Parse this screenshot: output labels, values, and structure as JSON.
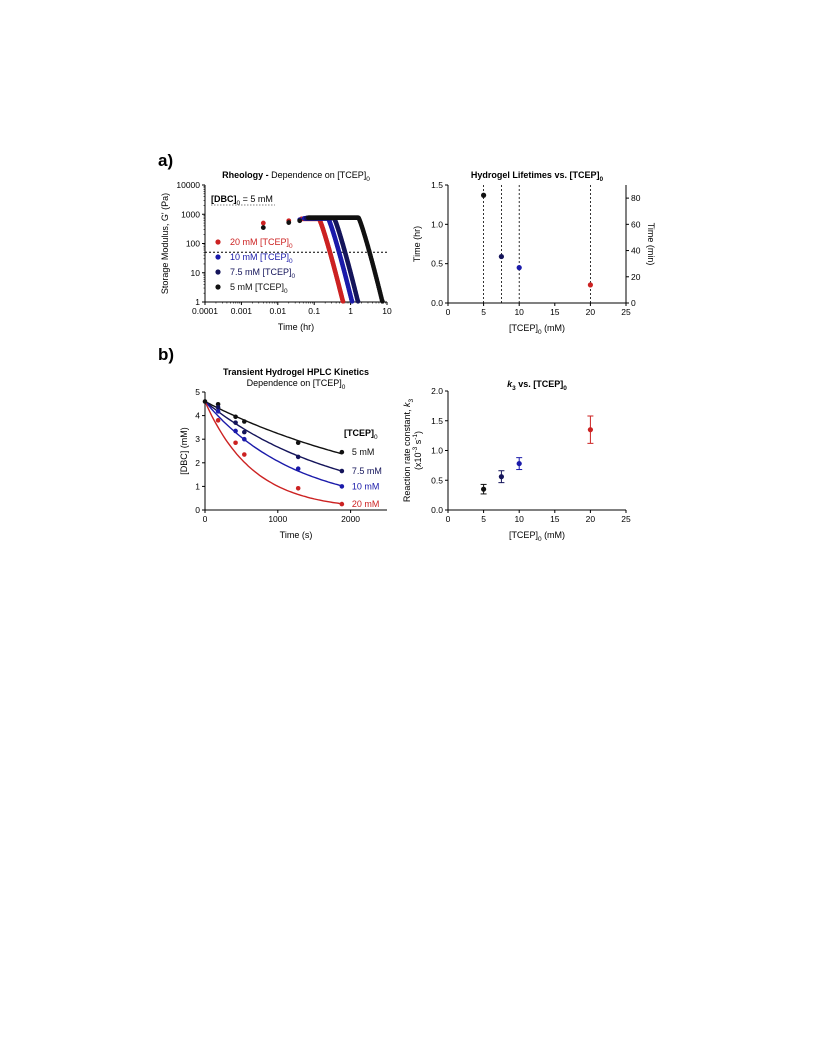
{
  "panel_labels": {
    "a": "a)",
    "b": "b)"
  },
  "colors": {
    "red": "#cc2222",
    "blue": "#1a1aaa",
    "navy": "#14145a",
    "black": "#111111"
  },
  "chart_data": [
    {
      "id": "rheology",
      "type": "scatter",
      "title_bold": "Rheology -",
      "title_rest": " Dependence on [TCEP]",
      "title_sub": "0",
      "xlabel": "Time (hr)",
      "ylabel": "Storage Modulus, G' (Pa)",
      "xscale": "log",
      "yscale": "log",
      "xlim": [
        0.0001,
        10
      ],
      "ylim": [
        1,
        10000
      ],
      "x_ticks": [
        "0.0001",
        "0.001",
        "0.01",
        "0.1",
        "1",
        "10"
      ],
      "y_ticks": [
        "1",
        "10",
        "100",
        "1000",
        "10000"
      ],
      "reference_line_y": 50,
      "annotation": {
        "main": "[DBC]",
        "sub": "0",
        "rest": " = 5 mM"
      },
      "series": [
        {
          "name": "20 mM [TCEP]",
          "sub": "0",
          "color": "#cc2222",
          "plateau": 700,
          "t_end": 0.62
        },
        {
          "name": "10 mM [TCEP]",
          "sub": "0",
          "color": "#1a1aaa",
          "plateau": 720,
          "t_end": 1.1
        },
        {
          "name": "7.5 mM [TCEP]",
          "sub": "0",
          "color": "#14145a",
          "plateau": 740,
          "t_end": 1.6
        },
        {
          "name": "5 mM [TCEP]",
          "sub": "0",
          "color": "#111111",
          "plateau": 760,
          "t_end": 7.5
        }
      ],
      "early_points": [
        {
          "x": 0.004,
          "y": 500,
          "color": "#cc2222"
        },
        {
          "x": 0.004,
          "y": 350,
          "color": "#111111"
        },
        {
          "x": 0.02,
          "y": 600,
          "color": "#cc2222"
        },
        {
          "x": 0.02,
          "y": 520,
          "color": "#111111"
        },
        {
          "x": 0.04,
          "y": 650,
          "color": "#1a1aaa"
        },
        {
          "x": 0.04,
          "y": 600,
          "color": "#111111"
        }
      ]
    },
    {
      "id": "lifetimes",
      "type": "scatter",
      "title": "Hydrogel Lifetimes vs. [TCEP]",
      "title_sub": "0",
      "xlabel": "[TCEP]",
      "xlabel_sub": "0",
      "xlabel_rest": " (mM)",
      "ylabel": "Time (hr)",
      "y2label": "Time (min)",
      "xlim": [
        0,
        25
      ],
      "ylim": [
        0,
        1.5
      ],
      "y2lim": [
        0,
        90
      ],
      "x_ticks": [
        "0",
        "5",
        "10",
        "15",
        "20",
        "25"
      ],
      "y_ticks": [
        "0.0",
        "0.5",
        "1.0",
        "1.5"
      ],
      "y2_ticks": [
        "0",
        "20",
        "40",
        "60",
        "80"
      ],
      "points": [
        {
          "x": 5,
          "y": 1.37,
          "color": "#111111"
        },
        {
          "x": 7.5,
          "y": 0.59,
          "color": "#14145a"
        },
        {
          "x": 10,
          "y": 0.45,
          "color": "#1a1aaa"
        },
        {
          "x": 20,
          "y": 0.23,
          "color": "#cc2222"
        }
      ]
    },
    {
      "id": "hplc",
      "type": "line",
      "title": "Transient Hydrogel  HPLC Kinetics",
      "subtitle": "Dependence on [TCEP]",
      "subtitle_sub": "0",
      "xlabel": "Time (s)",
      "ylabel": "[DBC] (mM)",
      "xlim": [
        0,
        2500
      ],
      "ylim": [
        0,
        5
      ],
      "x_ticks": [
        "0",
        "1000",
        "2000"
      ],
      "y_ticks": [
        "0",
        "1",
        "2",
        "3",
        "4",
        "5"
      ],
      "legend_title": "[TCEP]",
      "legend_title_sub": "0",
      "series": [
        {
          "name": "5 mM",
          "color": "#111111",
          "y0": 4.6,
          "k": 0.00035,
          "points": [
            [
              180,
              4.48
            ],
            [
              420,
              3.95
            ],
            [
              540,
              3.75
            ],
            [
              1280,
              2.85
            ],
            [
              1880,
              2.45
            ]
          ]
        },
        {
          "name": "7.5 mM",
          "color": "#14145a",
          "y0": 4.6,
          "k": 0.000545,
          "points": [
            [
              180,
              4.35
            ],
            [
              420,
              3.7
            ],
            [
              540,
              3.3
            ],
            [
              1280,
              2.25
            ],
            [
              1880,
              1.65
            ]
          ]
        },
        {
          "name": "10 mM",
          "color": "#1a1aaa",
          "y0": 4.6,
          "k": 0.0008,
          "points": [
            [
              180,
              4.18
            ],
            [
              420,
              3.35
            ],
            [
              540,
              3.0
            ],
            [
              1280,
              1.75
            ],
            [
              1880,
              1.0
            ]
          ]
        },
        {
          "name": "20 mM",
          "color": "#cc2222",
          "y0": 4.6,
          "k": 0.00152,
          "points": [
            [
              180,
              3.8
            ],
            [
              420,
              2.85
            ],
            [
              540,
              2.35
            ],
            [
              1280,
              0.92
            ],
            [
              1880,
              0.25
            ]
          ]
        }
      ]
    },
    {
      "id": "k3",
      "type": "scatter",
      "title_italic": "k",
      "title_sub": "3",
      "title_rest": " vs. [TCEP]",
      "title_rest_sub": "0",
      "xlabel": "[TCEP]",
      "xlabel_sub": "0",
      "xlabel_rest": " (mM)",
      "ylabel_line1": "Reaction rate constant, ",
      "ylabel_line1_italic": "k",
      "ylabel_line1_sub": "3",
      "ylabel_line2": "(x10",
      "ylabel_line2_sup1": "-3",
      "ylabel_line2_mid": " s",
      "ylabel_line2_sup2": "-1",
      "ylabel_line2_end": ")",
      "xlim": [
        0,
        25
      ],
      "ylim": [
        0,
        2.0
      ],
      "x_ticks": [
        "0",
        "5",
        "10",
        "15",
        "20",
        "25"
      ],
      "y_ticks": [
        "0.0",
        "0.5",
        "1.0",
        "1.5",
        "2.0"
      ],
      "points": [
        {
          "x": 5,
          "y": 0.35,
          "err": 0.08,
          "color": "#111111"
        },
        {
          "x": 7.5,
          "y": 0.56,
          "err": 0.1,
          "color": "#14145a"
        },
        {
          "x": 10,
          "y": 0.78,
          "err": 0.1,
          "color": "#1a1aaa"
        },
        {
          "x": 20,
          "y": 1.35,
          "err": 0.23,
          "color": "#cc2222"
        }
      ]
    }
  ]
}
